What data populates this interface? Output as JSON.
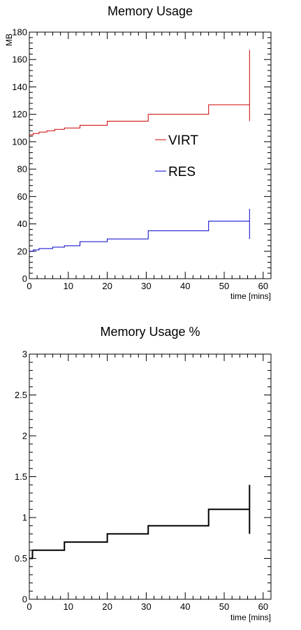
{
  "chart_data": [
    {
      "type": "line",
      "title": "Memory Usage",
      "xlabel": "time [mins]",
      "ylabel": "MB",
      "xlim": [
        0,
        62
      ],
      "ylim": [
        0,
        180
      ],
      "x_ticks": [
        0,
        10,
        20,
        30,
        40,
        50,
        60
      ],
      "y_ticks": [
        0,
        20,
        40,
        60,
        80,
        100,
        120,
        140,
        160,
        180
      ],
      "legend_position": "center-right",
      "series": [
        {
          "name": "VIRT",
          "color": "#cc0000",
          "step_x": [
            0,
            1,
            2.5,
            4.5,
            6.5,
            9,
            13,
            20,
            30.5,
            46,
            56.5
          ],
          "values": [
            105,
            106,
            107,
            108,
            109,
            110,
            112,
            115,
            120,
            127
          ],
          "error_bar": {
            "x": 56.5,
            "low": 115,
            "high": 167
          }
        },
        {
          "name": "RES",
          "color": "#0000cc",
          "step_x": [
            0,
            1,
            2.5,
            6,
            9,
            13,
            20,
            30.5,
            46,
            56.5
          ],
          "values": [
            20,
            21,
            22,
            23,
            24,
            27,
            29,
            35,
            42
          ],
          "error_bar": {
            "x": 56.5,
            "low": 29,
            "high": 51
          }
        }
      ]
    },
    {
      "type": "line",
      "title": "Memory Usage %",
      "xlabel": "time [mins]",
      "xlim": [
        0,
        62
      ],
      "ylim": [
        0,
        3
      ],
      "x_ticks": [
        0,
        10,
        20,
        30,
        40,
        50,
        60
      ],
      "y_ticks": [
        0,
        0.5,
        1,
        1.5,
        2,
        2.5,
        3
      ],
      "y_tick_labels": [
        "0",
        "0.5",
        "1",
        "1.5",
        "2",
        "2.5",
        "3"
      ],
      "series": [
        {
          "color": "#000000",
          "step_x": [
            0,
            0.8,
            9,
            20,
            30.5,
            46,
            56.5
          ],
          "values": [
            0.5,
            0.6,
            0.7,
            0.8,
            0.9,
            1.1
          ],
          "error_bar": {
            "x": 56.5,
            "low": 0.8,
            "high": 1.4
          }
        }
      ]
    }
  ]
}
